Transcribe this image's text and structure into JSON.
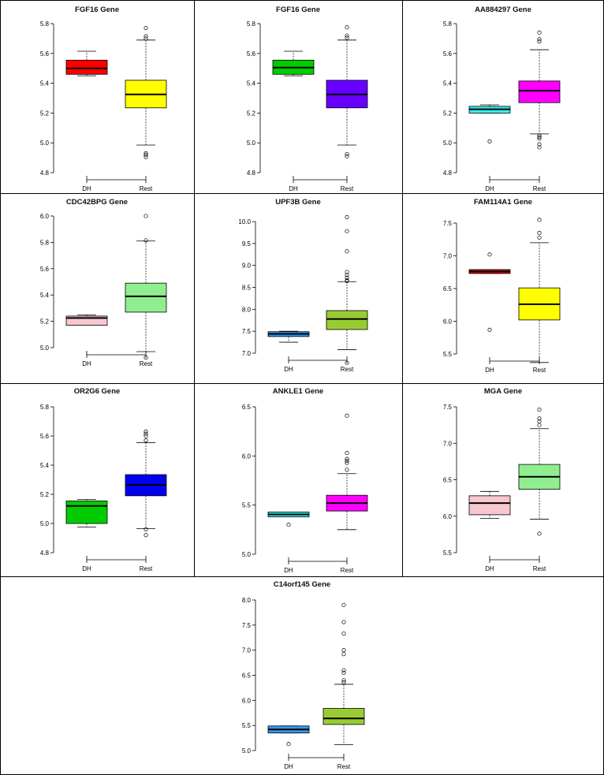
{
  "chart_data": [
    {
      "type": "box",
      "title": "FGF16 Gene",
      "categories": [
        "DH",
        "Rest"
      ],
      "yticks": [
        4.8,
        5.0,
        5.2,
        5.4,
        5.6,
        5.8
      ],
      "ylim": [
        4.8,
        5.8
      ],
      "colors": [
        "#ff0000",
        "#ffff00"
      ],
      "boxes": [
        {
          "whislo": 5.45,
          "q1": 5.46,
          "med": 5.5,
          "q3": 5.555,
          "whishi": 5.615,
          "fliers": []
        },
        {
          "whislo": 4.985,
          "q1": 5.235,
          "med": 5.325,
          "q3": 5.42,
          "whishi": 5.69,
          "fliers": [
            4.905,
            4.92,
            4.93,
            5.7,
            5.715,
            5.77
          ]
        }
      ]
    },
    {
      "type": "box",
      "title": "FGF16 Gene",
      "categories": [
        "DH",
        "Rest"
      ],
      "yticks": [
        4.8,
        5.0,
        5.2,
        5.4,
        5.6,
        5.8
      ],
      "ylim": [
        4.8,
        5.8
      ],
      "colors": [
        "#00cc00",
        "#6600ff"
      ],
      "boxes": [
        {
          "whislo": 5.45,
          "q1": 5.46,
          "med": 5.505,
          "q3": 5.555,
          "whishi": 5.615,
          "fliers": []
        },
        {
          "whislo": 4.985,
          "q1": 5.235,
          "med": 5.325,
          "q3": 5.42,
          "whishi": 5.69,
          "fliers": [
            4.91,
            4.925,
            5.705,
            5.72,
            5.775
          ]
        }
      ]
    },
    {
      "type": "box",
      "title": "AA884297 Gene",
      "categories": [
        "DH",
        "Rest"
      ],
      "yticks": [
        4.8,
        5.0,
        5.2,
        5.4,
        5.6,
        5.8
      ],
      "ylim": [
        4.8,
        5.8
      ],
      "colors": [
        "#33eeee",
        "#ff00ff"
      ],
      "boxes": [
        {
          "whislo": 5.2,
          "q1": 5.2,
          "med": 5.225,
          "q3": 5.245,
          "whishi": 5.255,
          "fliers": [
            5.01
          ]
        },
        {
          "whislo": 5.06,
          "q1": 5.27,
          "med": 5.35,
          "q3": 5.415,
          "whishi": 5.625,
          "fliers": [
            4.97,
            4.99,
            5.03,
            5.04,
            5.05,
            5.68,
            5.695,
            5.74
          ]
        }
      ]
    },
    {
      "type": "box",
      "title": "CDC42BPG Gene",
      "categories": [
        "DH",
        "Rest"
      ],
      "yticks": [
        5.0,
        5.2,
        5.4,
        5.6,
        5.8,
        6.0
      ],
      "ylim": [
        5.0,
        6.0
      ],
      "colors": [
        "#f7c6cf",
        "#90ee90"
      ],
      "boxes": [
        {
          "whislo": 5.17,
          "q1": 5.17,
          "med": 5.225,
          "q3": 5.24,
          "whishi": 5.25,
          "fliers": []
        },
        {
          "whislo": 4.97,
          "q1": 5.27,
          "med": 5.39,
          "q3": 5.49,
          "whishi": 5.81,
          "fliers": [
            4.925,
            5.815,
            6.0
          ]
        }
      ]
    },
    {
      "type": "box",
      "title": "UPF3B Gene",
      "categories": [
        "DH",
        "Rest"
      ],
      "yticks": [
        7.0,
        7.5,
        8.0,
        8.5,
        9.0,
        9.5,
        10.0
      ],
      "ylim": [
        7.0,
        10.0
      ],
      "colors": [
        "#3399ee",
        "#99cc33"
      ],
      "boxes": [
        {
          "whislo": 7.25,
          "q1": 7.38,
          "med": 7.44,
          "q3": 7.49,
          "whishi": 7.5,
          "fliers": []
        },
        {
          "whislo": 7.08,
          "q1": 7.54,
          "med": 7.78,
          "q3": 7.97,
          "whishi": 8.63,
          "fliers": [
            6.78,
            8.64,
            8.66,
            8.72,
            8.78,
            8.85,
            9.32,
            9.78,
            10.1
          ]
        }
      ]
    },
    {
      "type": "box",
      "title": "FAM114A1 Gene",
      "categories": [
        "DH",
        "Rest"
      ],
      "yticks": [
        5.5,
        6.0,
        6.5,
        7.0,
        7.5
      ],
      "ylim": [
        5.5,
        7.5
      ],
      "colors": [
        "#ee0000",
        "#ffff00"
      ],
      "boxes": [
        {
          "whislo": 6.73,
          "q1": 6.73,
          "med": 6.76,
          "q3": 6.79,
          "whishi": 6.79,
          "fliers": [
            5.87,
            7.02
          ]
        },
        {
          "whislo": 5.37,
          "q1": 6.02,
          "med": 6.26,
          "q3": 6.51,
          "whishi": 7.2,
          "fliers": [
            7.28,
            7.35,
            7.55
          ]
        }
      ]
    },
    {
      "type": "box",
      "title": "OR2G6 Gene",
      "categories": [
        "DH",
        "Rest"
      ],
      "yticks": [
        4.8,
        5.0,
        5.2,
        5.4,
        5.6,
        5.8
      ],
      "ylim": [
        4.8,
        5.8
      ],
      "colors": [
        "#00cc00",
        "#0000ee"
      ],
      "boxes": [
        {
          "whislo": 4.975,
          "q1": 5.0,
          "med": 5.12,
          "q3": 5.155,
          "whishi": 5.165,
          "fliers": []
        },
        {
          "whislo": 4.965,
          "q1": 5.19,
          "med": 5.265,
          "q3": 5.335,
          "whishi": 5.555,
          "fliers": [
            4.92,
            4.96,
            5.57,
            5.6,
            5.615,
            5.63
          ]
        }
      ]
    },
    {
      "type": "box",
      "title": "ANKLE1 Gene",
      "categories": [
        "DH",
        "Rest"
      ],
      "yticks": [
        5.0,
        5.5,
        6.0,
        6.5
      ],
      "ylim": [
        5.0,
        6.5
      ],
      "colors": [
        "#33eeee",
        "#ff00ff"
      ],
      "boxes": [
        {
          "whislo": 5.38,
          "q1": 5.38,
          "med": 5.405,
          "q3": 5.43,
          "whishi": 5.43,
          "fliers": [
            5.3
          ]
        },
        {
          "whislo": 5.25,
          "q1": 5.44,
          "med": 5.52,
          "q3": 5.6,
          "whishi": 5.82,
          "fliers": [
            5.86,
            5.93,
            5.95,
            5.97,
            6.03,
            6.41
          ]
        }
      ]
    },
    {
      "type": "box",
      "title": "MGA Gene",
      "categories": [
        "DH",
        "Rest"
      ],
      "yticks": [
        5.5,
        6.0,
        6.5,
        7.0,
        7.5
      ],
      "ylim": [
        5.5,
        7.5
      ],
      "colors": [
        "#f7c6cf",
        "#90ee90"
      ],
      "boxes": [
        {
          "whislo": 5.97,
          "q1": 6.02,
          "med": 6.18,
          "q3": 6.28,
          "whishi": 6.34,
          "fliers": []
        },
        {
          "whislo": 5.96,
          "q1": 6.37,
          "med": 6.54,
          "q3": 6.71,
          "whishi": 7.2,
          "fliers": [
            5.76,
            7.25,
            7.3,
            7.34,
            7.46
          ]
        }
      ]
    },
    {
      "type": "box",
      "title": "C14orf145 Gene",
      "categories": [
        "DH",
        "Rest"
      ],
      "yticks": [
        5.0,
        5.5,
        6.0,
        6.5,
        7.0,
        7.5,
        8.0
      ],
      "ylim": [
        5.0,
        8.0
      ],
      "colors": [
        "#3399ee",
        "#99cc33"
      ],
      "boxes": [
        {
          "whislo": 5.35,
          "q1": 5.35,
          "med": 5.42,
          "q3": 5.49,
          "whishi": 5.49,
          "fliers": [
            5.13
          ]
        },
        {
          "whislo": 5.12,
          "q1": 5.52,
          "med": 5.64,
          "q3": 5.84,
          "whishi": 6.32,
          "fliers": [
            6.36,
            6.4,
            6.55,
            6.6,
            6.92,
            7.0,
            7.33,
            7.56,
            7.9
          ]
        }
      ]
    }
  ]
}
